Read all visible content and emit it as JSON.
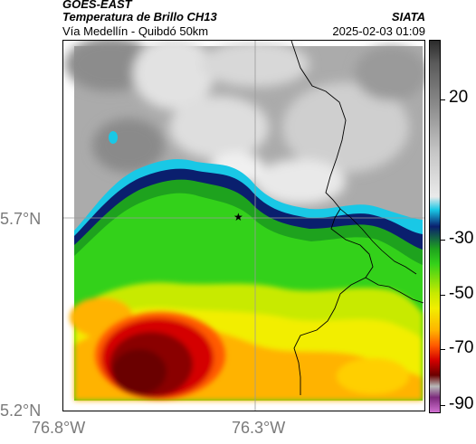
{
  "header": {
    "product": "GOES-EAST",
    "title": "Temperatura de Brillo CH13",
    "subtitle": "Vía Medellín - Quibdó 50km",
    "organization": "SIATA",
    "datetime": "2025-02-03 01:09"
  },
  "map": {
    "lat_labels": [
      "5.7°N",
      "5.2°N"
    ],
    "lon_labels": [
      "76.8°W",
      "76.3°W"
    ],
    "marker": "star-marker",
    "colors": {
      "gray_light": "#e6e6e6",
      "gray_mid": "#a8a8a8",
      "blue_dark": "#0a1f6e",
      "cyan": "#19c8e6",
      "green": "#33d11a",
      "yellow": "#f2ee00",
      "orange": "#ffb300",
      "red": "#d40000",
      "dark_red": "#6b0000",
      "border": "#000000"
    }
  },
  "colorbar": {
    "labels": [
      "20",
      "-30",
      "-50",
      "-70",
      "-90"
    ],
    "colors": [
      "#2b2b2b",
      "#5a5a5a",
      "#8e8e8e",
      "#c6c6c6",
      "#eaeaea",
      "#19c8e6",
      "#0a1f6e",
      "#1ea21e",
      "#33d11a",
      "#c8ea00",
      "#f2ee00",
      "#ffb300",
      "#ff5a00",
      "#d40000",
      "#6b0000",
      "#b8b8b8",
      "#7c2a7c",
      "#d070d0"
    ]
  }
}
